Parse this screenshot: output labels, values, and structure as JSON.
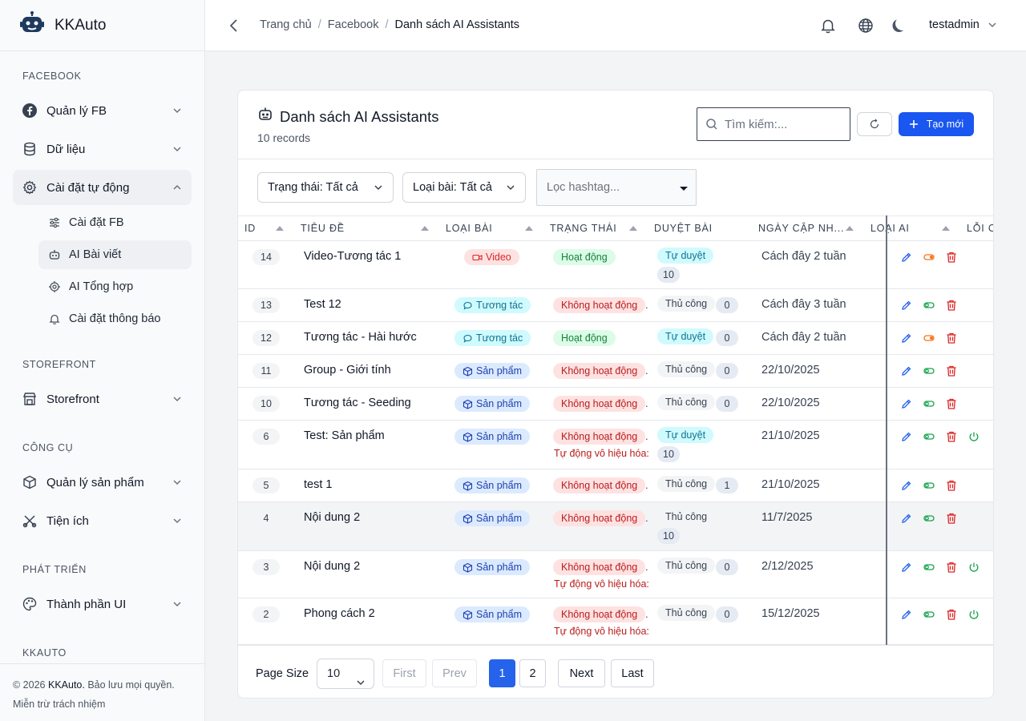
{
  "app": {
    "name": "KKAuto"
  },
  "sidebar": {
    "sections": [
      {
        "title": "FACEBOOK"
      },
      {
        "title": "STOREFRONT"
      },
      {
        "title": "CÔNG CỤ"
      },
      {
        "title": "PHÁT TRIỂN"
      },
      {
        "title": "KKAUTO"
      }
    ],
    "items": [
      {
        "label": "Quản lý FB",
        "icon": "facebook-icon"
      },
      {
        "label": "Dữ liệu",
        "icon": "database-icon"
      },
      {
        "label": "Cài đặt tự động",
        "icon": "gear-icon"
      },
      {
        "label": "Storefront",
        "icon": "store-icon"
      },
      {
        "label": "Quản lý sản phẩm",
        "icon": "box-icon"
      },
      {
        "label": "Tiện ích",
        "icon": "tools-icon"
      },
      {
        "label": "Thành phần UI",
        "icon": "palette-icon"
      }
    ],
    "sub_items": [
      {
        "label": "Cài đặt FB",
        "icon": "sliders-icon"
      },
      {
        "label": "AI Bài viết",
        "icon": "robot-icon"
      },
      {
        "label": "AI Tổng hợp",
        "icon": "chip-icon"
      },
      {
        "label": "Cài đặt thông báo",
        "icon": "bell-icon"
      }
    ],
    "footer": {
      "prefix": "© 2026",
      "brand": "KKAuto.",
      "rights": "Bảo lưu mọi quyền.",
      "disclaimer": "Miễn trừ trách nhiệm"
    }
  },
  "header": {
    "breadcrumb": [
      "Trang chủ",
      "Facebook",
      "Danh sách AI Assistants"
    ],
    "user": "testadmin"
  },
  "card": {
    "title": "Danh sách AI Assistants",
    "subtitle": "10 records",
    "search_placeholder": "Tìm kiếm:...",
    "create_label": "Tạo mới",
    "filters": {
      "status": "Trạng thái: Tất cả",
      "type": "Loại bài: Tất cả",
      "hashtag_placeholder": "Lọc hashtag..."
    }
  },
  "table": {
    "columns": [
      "ID",
      "TIÊU ĐỀ",
      "LOẠI BÀI",
      "TRẠNG THÁI",
      "DUYỆT BÀI",
      "NGÀY CẬP NH...",
      "LOẠI AI",
      "LỖI C"
    ],
    "rows": [
      {
        "id": "14",
        "title": "Video-Tương tác 1",
        "type": "Video",
        "status": "Hoạt động",
        "review": "Tự duyệt",
        "count": "10",
        "date": "Cách đây 2 tuần",
        "note": "",
        "power": false
      },
      {
        "id": "13",
        "title": "Test 12",
        "type": "Tương tác",
        "status": "Không hoạt động",
        "review": "Thủ công",
        "count": "0",
        "date": "Cách đây 3 tuần",
        "note": "",
        "power": false
      },
      {
        "id": "12",
        "title": "Tương tác - Hài hước",
        "type": "Tương tác",
        "status": "Hoạt động",
        "review": "Tự duyệt",
        "count": "0",
        "date": "Cách đây 2 tuần",
        "note": "",
        "power": false
      },
      {
        "id": "11",
        "title": "Group - Giới tính",
        "type": "Sản phẩm",
        "status": "Không hoạt động",
        "review": "Thủ công",
        "count": "0",
        "date": "22/10/2025",
        "note": "",
        "power": false
      },
      {
        "id": "10",
        "title": "Tương tác - Seeding",
        "type": "Sản phẩm",
        "status": "Không hoạt động",
        "review": "Thủ công",
        "count": "0",
        "date": "22/10/2025",
        "note": "",
        "power": false
      },
      {
        "id": "6",
        "title": "Test: Sản phẩm",
        "type": "Sản phẩm",
        "status": "Không hoạt động",
        "review": "Tự duyệt",
        "count": "10",
        "date": "21/10/2025",
        "note": "Tự động vô hiệu hóa:",
        "power": true
      },
      {
        "id": "5",
        "title": "test 1",
        "type": "Sản phẩm",
        "status": "Không hoạt động",
        "review": "Thủ công",
        "count": "1",
        "date": "21/10/2025",
        "note": "",
        "power": false
      },
      {
        "id": "4",
        "title": "Nội dung 2",
        "type": "Sản phẩm",
        "status": "Không hoạt động",
        "review": "Thủ công",
        "count": "10",
        "date": "11/7/2025",
        "note": "",
        "power": false
      },
      {
        "id": "3",
        "title": "Nội dung 2",
        "type": "Sản phẩm",
        "status": "Không hoạt động",
        "review": "Thủ công",
        "count": "0",
        "date": "2/12/2025",
        "note": "Tự động vô hiệu hóa:",
        "power": true
      },
      {
        "id": "2",
        "title": "Phong cách 2",
        "type": "Sản phẩm",
        "status": "Không hoạt động",
        "review": "Thủ công",
        "count": "0",
        "date": "15/12/2025",
        "note": "Tự động vô hiệu hóa:",
        "power": true
      }
    ]
  },
  "pagination": {
    "page_size_label": "Page Size",
    "page_size": "10",
    "first": "First",
    "prev": "Prev",
    "pages": [
      "1",
      "2"
    ],
    "next": "Next",
    "last": "Last"
  },
  "colors": {
    "primary": "#1a56f0",
    "danger": "#dc2626",
    "success": "#16a34a",
    "orange": "#f97316"
  }
}
